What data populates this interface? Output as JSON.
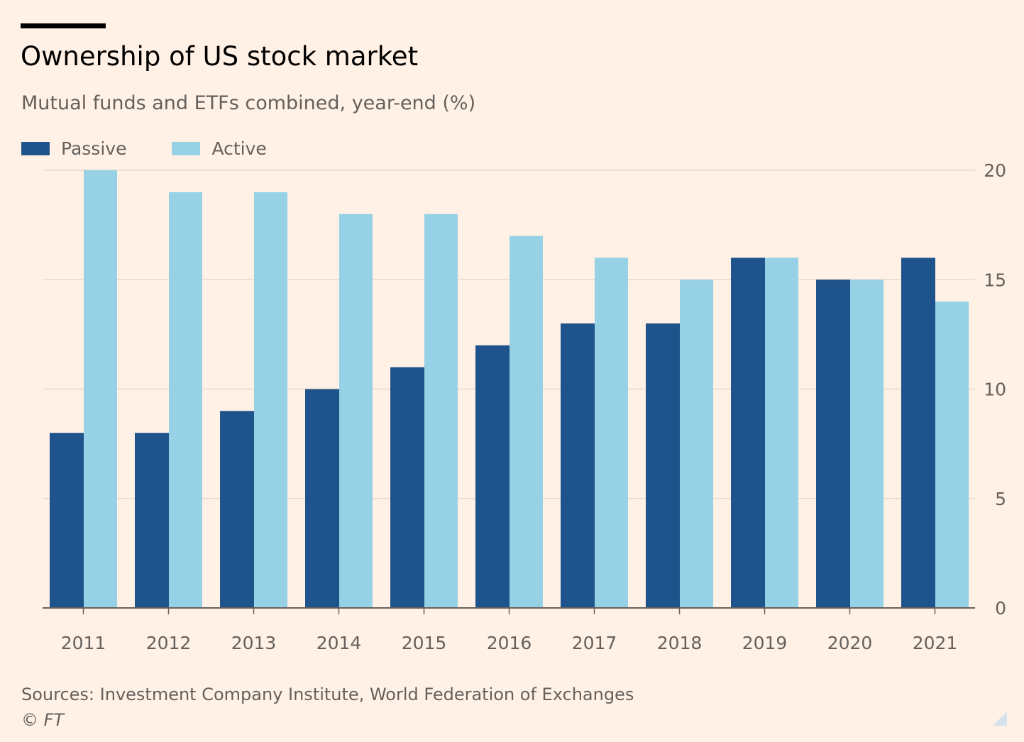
{
  "header": {
    "title": "Ownership of US stock market",
    "subtitle": "Mutual funds and ETFs combined, year-end (%)"
  },
  "footer": {
    "source": "Sources: Investment Company Institute, World Federation of Exchanges",
    "copyright": "© FT"
  },
  "colors": {
    "background": "#FFF1E5",
    "passive": "#1F538B",
    "active": "#96D1E6",
    "gridline": "#E6D9CE",
    "axis": "#66605C"
  },
  "chart_data": {
    "type": "bar",
    "title": "Ownership of US stock market",
    "subtitle": "Mutual funds and ETFs combined, year-end (%)",
    "categories": [
      "2011",
      "2012",
      "2013",
      "2014",
      "2015",
      "2016",
      "2017",
      "2018",
      "2019",
      "2020",
      "2021"
    ],
    "series": [
      {
        "name": "Passive",
        "color": "#1F538B",
        "values": [
          8,
          8,
          9,
          10,
          11,
          12,
          13,
          13,
          16,
          15,
          16
        ]
      },
      {
        "name": "Active",
        "color": "#96D1E6",
        "values": [
          20,
          19,
          19,
          18,
          18,
          17,
          16,
          15,
          16,
          15,
          14
        ]
      }
    ],
    "ylim": [
      0,
      20
    ],
    "yticks": [
      0,
      5,
      10,
      15,
      20
    ],
    "xlabel": "",
    "ylabel": "",
    "y_axis_side": "right",
    "grid": true,
    "legend": "top-left"
  }
}
